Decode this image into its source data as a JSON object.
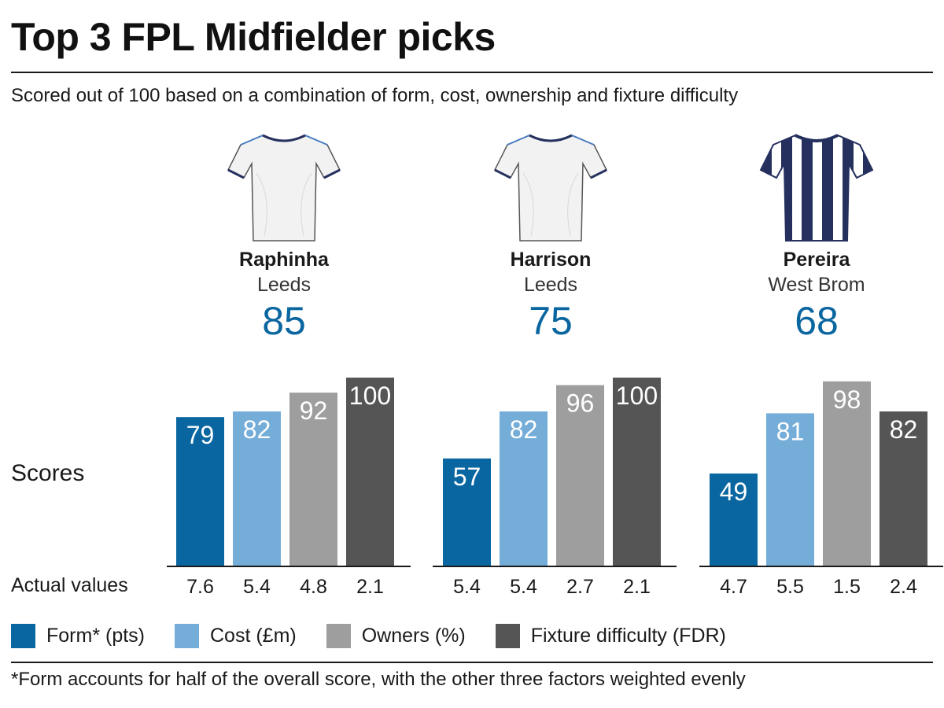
{
  "title": "Top 3 FPL Midfielder picks",
  "subtitle": "Scored out of 100 based on a combination of form, cost, ownership and fixture difficulty",
  "colors": {
    "form": "#0a66a0",
    "cost": "#74add8",
    "owners": "#9e9e9e",
    "fixture": "#555555",
    "score_text": "#0a66a0",
    "navy": "#25305e"
  },
  "players": [
    {
      "name": "Raphinha",
      "team": "Leeds",
      "overall": "85",
      "shirt": "white-shirt-icon"
    },
    {
      "name": "Harrison",
      "team": "Leeds",
      "overall": "75",
      "shirt": "white-shirt-icon"
    },
    {
      "name": "Pereira",
      "team": "West Brom",
      "overall": "68",
      "shirt": "striped-shirt-icon"
    }
  ],
  "labels": {
    "scores": "Scores",
    "actual": "Actual values"
  },
  "legend": [
    {
      "key": "form",
      "label": "Form* (pts)"
    },
    {
      "key": "cost",
      "label": "Cost (£m)"
    },
    {
      "key": "owners",
      "label": "Owners (%)"
    },
    {
      "key": "fixture",
      "label": "Fixture difficulty (FDR)"
    }
  ],
  "footnote": "*Form accounts for half of the overall score, with the other three factors weighted evenly",
  "chart_data": {
    "type": "bar",
    "categories": [
      "Form* (pts)",
      "Cost (£m)",
      "Owners (%)",
      "Fixture difficulty (FDR)"
    ],
    "ylim": [
      0,
      100
    ],
    "grid": false,
    "legend_placement": "bottom",
    "groups": [
      {
        "name": "Raphinha",
        "scores": [
          79,
          82,
          92,
          100
        ],
        "actual": [
          "7.6",
          "5.4",
          "4.8",
          "2.1"
        ]
      },
      {
        "name": "Harrison",
        "scores": [
          57,
          82,
          96,
          100
        ],
        "actual": [
          "5.4",
          "5.4",
          "2.7",
          "2.1"
        ]
      },
      {
        "name": "Pereira",
        "scores": [
          49,
          81,
          98,
          82
        ],
        "actual": [
          "4.7",
          "5.5",
          "1.5",
          "2.4"
        ]
      }
    ]
  }
}
